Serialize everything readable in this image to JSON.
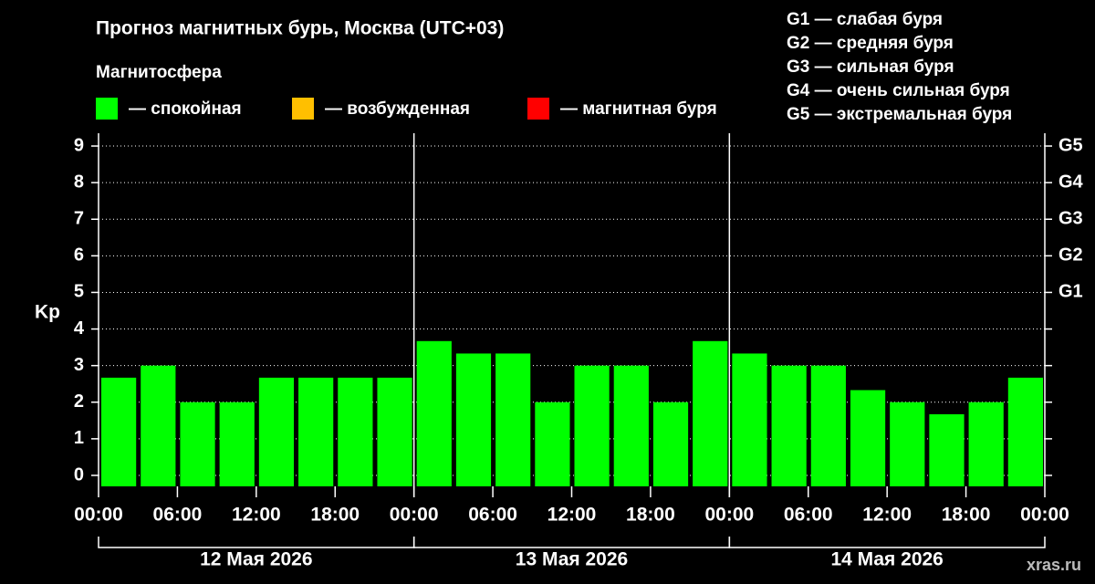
{
  "chart_data": {
    "type": "bar",
    "title": "Прогноз магнитных бурь, Москва (UTC+03)",
    "legend_title": "Магнитосфера",
    "legend": [
      {
        "label": "— спокойная",
        "color": "#00ff00"
      },
      {
        "label": "— возбужденная",
        "color": "#ffbf00"
      },
      {
        "label": "— магнитная буря",
        "color": "#ff0000"
      }
    ],
    "storm_scale": [
      "G1 — слабая буря",
      "G2 — средняя буря",
      "G3 — сильная буря",
      "G4 — очень сильная буря",
      "G5 — экстремальная буря"
    ],
    "y_label": "Kp",
    "categories": [
      null,
      null,
      null,
      null,
      null,
      null,
      null,
      null,
      null,
      null,
      null,
      null,
      null,
      null,
      null,
      null,
      null,
      null,
      null,
      null,
      null,
      null,
      null,
      null
    ],
    "color": "#00ff00",
    "values": [
      2.67,
      3,
      2,
      2,
      2.67,
      2.67,
      2.67,
      2.67,
      3.67,
      3.33,
      3.33,
      2,
      3,
      3,
      2,
      3.67,
      3.33,
      3,
      3,
      2.33,
      2,
      1.67,
      2,
      2.67
    ],
    "ylim": [
      -0.3,
      9.35
    ],
    "yticks": [
      0,
      1,
      2,
      3,
      4,
      5,
      6,
      7,
      8,
      9
    ],
    "y2lim": [
      -0.3,
      9.35
    ],
    "y2ticks": [
      {
        "value": 5,
        "label": "G1"
      },
      {
        "value": 6,
        "label": "G2"
      },
      {
        "value": 7,
        "label": "G3"
      },
      {
        "value": 8,
        "label": "G4"
      },
      {
        "value": 9,
        "label": "G5"
      }
    ],
    "xlim": [
      0,
      72
    ],
    "xticks": [
      {
        "value": 0,
        "label": "00:00"
      },
      {
        "value": 6,
        "label": "06:00"
      },
      {
        "value": 12,
        "label": "12:00"
      },
      {
        "value": 18,
        "label": "18:00"
      },
      {
        "value": 24,
        "label": "00:00"
      },
      {
        "value": 30,
        "label": "06:00"
      },
      {
        "value": 36,
        "label": "12:00"
      },
      {
        "value": 42,
        "label": "18:00"
      },
      {
        "value": 48,
        "label": "00:00"
      },
      {
        "value": 54,
        "label": "06:00"
      },
      {
        "value": 60,
        "label": "12:00"
      },
      {
        "value": 66,
        "label": "18:00"
      },
      {
        "value": 72,
        "label": "00:00"
      }
    ],
    "days": [
      "12 Мая 2026",
      "13 Мая 2026",
      "14 Мая 2026"
    ],
    "grid": true,
    "watermark": "xras.ru"
  }
}
